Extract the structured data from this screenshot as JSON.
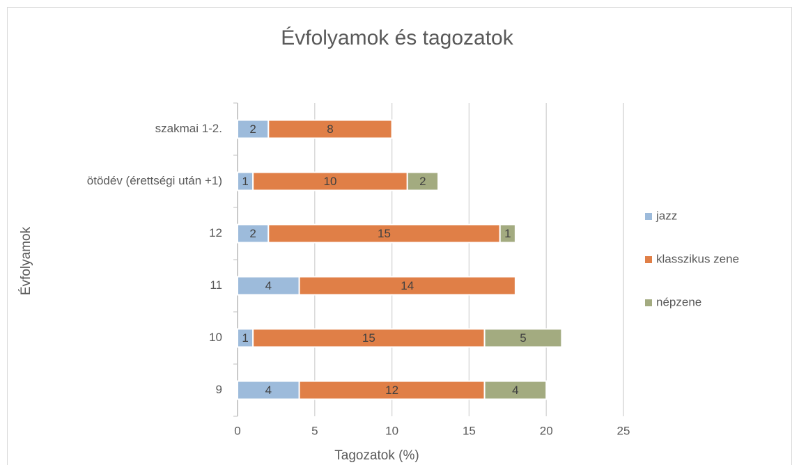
{
  "chart_data": {
    "type": "bar",
    "orientation": "horizontal",
    "stacked": true,
    "title": "Évfolyamok és tagozatok",
    "x_label": "Tagozatok (%)",
    "y_label": "Évfolyamok",
    "categories": [
      "9",
      "10",
      "11",
      "12",
      "ötödév (érettségi után +1)",
      "szakmai 1-2."
    ],
    "series": [
      {
        "name": "jazz",
        "color": "#9dbbdb",
        "values": [
          4,
          1,
          4,
          2,
          1,
          2
        ]
      },
      {
        "name": "klasszikus zene",
        "color": "#e07f47",
        "values": [
          12,
          15,
          14,
          15,
          10,
          8
        ]
      },
      {
        "name": "népzene",
        "color": "#a3ab80",
        "values": [
          4,
          5,
          null,
          1,
          2,
          null
        ]
      }
    ],
    "xlim": [
      0,
      25
    ],
    "xticks": [
      0,
      5,
      10,
      15,
      20,
      25
    ],
    "grid": true,
    "legend": "right",
    "data_labels": true
  }
}
